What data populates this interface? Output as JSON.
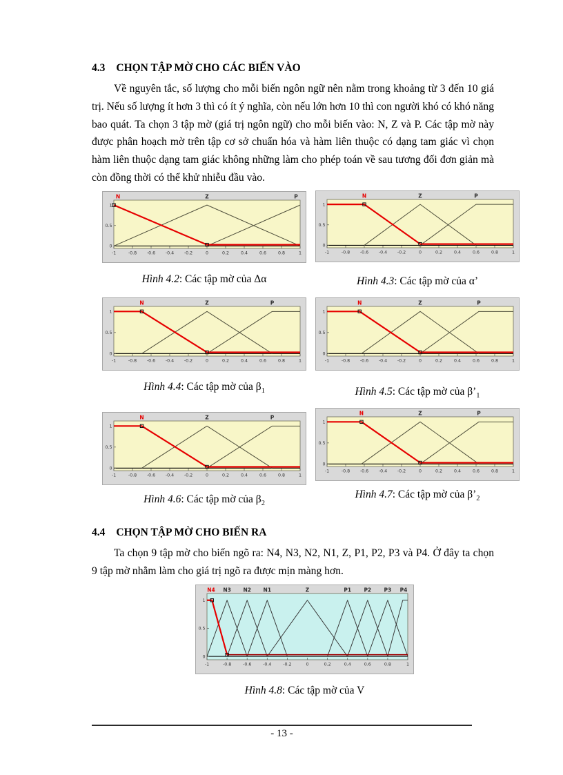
{
  "page": {
    "number_label": "- 13 -"
  },
  "section_43": {
    "number": "4.3",
    "title": "CHỌN TẬP MỜ CHO CÁC BIẾN VÀO",
    "body": "Về nguyên tắc, số lượng cho mỗi biến ngôn ngữ nên nằm trong khoảng từ 3 đến 10 giá trị. Nếu số lượng ít hơn 3 thì có ít ý nghĩa, còn nếu lớn hơn 10 thì con người khó có khó năng bao quát. Ta chọn 3 tập mờ (giá trị ngôn ngữ) cho mỗi biến vào: N, Z và P. Các tập mờ này được phân hoạch mờ trên tập cơ sở chuẩn hóa và hàm liên thuộc có dạng tam giác vì chọn hàm liên thuộc dạng tam giác không những làm cho phép toán về sau tương đối đơn giản mà còn đồng thời có thể khử nhiễu đầu vào."
  },
  "section_44": {
    "number": "4.4",
    "title": "CHỌN TẬP MỜ CHO BIẾN RA",
    "body": "Ta chọn 9 tập mờ cho biến ngõ ra: N4, N3, N2, N1, Z, P1, P2, P3 và P4. Ở đây ta chọn 9 tập mờ nhằm làm cho giá trị ngõ ra được mịn màng hơn."
  },
  "colors": {
    "input_plot_bg": "#f8f6c8",
    "output_plot_bg": "#c9f1ee",
    "frame_bg": "#d9d9d9",
    "red_set": "#e60000",
    "dark_set": "#4f4f3c",
    "zero_line_dark_red": "#a00000"
  },
  "figures": [
    {
      "caption_label": "Hình 4.2",
      "caption_text": ": Các tập mờ của Δα",
      "caption_sub": "",
      "chart_data": {
        "type": "line",
        "bg": "#f8f6c8",
        "xlim": [
          -1,
          1
        ],
        "ylim": [
          -0.06,
          1.12
        ],
        "xticks": [
          -1,
          -0.8,
          -0.6,
          -0.4,
          -0.2,
          0,
          0.2,
          0.4,
          0.6,
          0.8,
          1
        ],
        "yticks": [
          0,
          0.5,
          1
        ],
        "series": [
          {
            "name": "Z",
            "color": "#4f4f3c",
            "width": 1,
            "label_x": 0,
            "points": [
              [
                -1,
                0
              ],
              [
                0,
                1
              ],
              [
                1,
                0
              ]
            ]
          },
          {
            "name": "P",
            "color": "#4f4f3c",
            "width": 1,
            "label_x": 0.97,
            "points": [
              [
                0,
                0
              ],
              [
                1,
                1
              ]
            ]
          },
          {
            "name": "N",
            "color": "#e60000",
            "width": 2.2,
            "label_color": "#e60000",
            "label_x": -0.97,
            "points": [
              [
                -1,
                1
              ],
              [
                0,
                0.03
              ],
              [
                1,
                0.03
              ]
            ]
          }
        ],
        "markers": [
          [
            -1,
            1
          ],
          [
            0,
            0.03
          ]
        ]
      }
    },
    {
      "caption_label": "Hình 4.3",
      "caption_text": ": Các tập mờ của α’",
      "caption_sub": "",
      "chart_data": {
        "type": "line",
        "bg": "#f8f6c8",
        "xlim": [
          -1,
          1
        ],
        "ylim": [
          -0.06,
          1.12
        ],
        "xticks": [
          -1,
          -0.8,
          -0.6,
          -0.4,
          -0.2,
          0,
          0.2,
          0.4,
          0.6,
          0.8,
          1
        ],
        "yticks": [
          0,
          0.5,
          1
        ],
        "series": [
          {
            "name": "Z",
            "color": "#4f4f3c",
            "width": 1,
            "label_x": 0,
            "points": [
              [
                -0.6,
                0
              ],
              [
                0,
                1
              ],
              [
                0.6,
                0
              ]
            ]
          },
          {
            "name": "P",
            "color": "#4f4f3c",
            "width": 1,
            "label_x": 0.6,
            "points": [
              [
                0,
                0
              ],
              [
                0.6,
                1
              ],
              [
                1,
                1
              ]
            ]
          },
          {
            "name": "N",
            "color": "#e60000",
            "width": 2.2,
            "label_color": "#e60000",
            "label_x": -0.6,
            "points": [
              [
                -1,
                1
              ],
              [
                -0.6,
                1
              ],
              [
                0,
                0.03
              ],
              [
                1,
                0.03
              ]
            ]
          }
        ],
        "markers": [
          [
            -0.6,
            1
          ],
          [
            0,
            0.03
          ]
        ]
      }
    },
    {
      "caption_label": "Hình 4.4",
      "caption_text": ": Các tập mờ của β",
      "caption_sub": "1",
      "chart_data": {
        "type": "line",
        "bg": "#f8f6c8",
        "xlim": [
          -1,
          1
        ],
        "ylim": [
          -0.06,
          1.12
        ],
        "xticks": [
          -1,
          -0.8,
          -0.6,
          -0.4,
          -0.2,
          0,
          0.2,
          0.4,
          0.6,
          0.8,
          1
        ],
        "yticks": [
          0,
          0.5,
          1
        ],
        "series": [
          {
            "name": "Z",
            "color": "#4f4f3c",
            "width": 1,
            "label_x": 0,
            "points": [
              [
                -0.7,
                0
              ],
              [
                0,
                1
              ],
              [
                0.7,
                0
              ]
            ]
          },
          {
            "name": "P",
            "color": "#4f4f3c",
            "width": 1,
            "label_x": 0.7,
            "points": [
              [
                0,
                0
              ],
              [
                0.7,
                1
              ],
              [
                1,
                1
              ]
            ]
          },
          {
            "name": "N",
            "color": "#e60000",
            "width": 2.2,
            "label_color": "#e60000",
            "label_x": -0.7,
            "points": [
              [
                -1,
                1
              ],
              [
                -0.7,
                1
              ],
              [
                0,
                0.03
              ],
              [
                1,
                0.03
              ]
            ]
          }
        ],
        "markers": [
          [
            -0.7,
            1
          ],
          [
            0,
            0.03
          ]
        ]
      }
    },
    {
      "caption_label": "Hình 4.5",
      "caption_text": ": Các tập mờ của β’",
      "caption_sub": "1",
      "chart_data": {
        "type": "line",
        "bg": "#f8f6c8",
        "xlim": [
          -1,
          1
        ],
        "ylim": [
          -0.06,
          1.12
        ],
        "xticks": [
          -1,
          -0.8,
          -0.6,
          -0.4,
          -0.2,
          0,
          0.2,
          0.4,
          0.6,
          0.8,
          1
        ],
        "yticks": [
          0,
          0.5,
          1
        ],
        "series": [
          {
            "name": "Z",
            "color": "#4f4f3c",
            "width": 1,
            "label_x": 0,
            "points": [
              [
                -0.63,
                0
              ],
              [
                0,
                1
              ],
              [
                0.63,
                0
              ]
            ]
          },
          {
            "name": "P",
            "color": "#4f4f3c",
            "width": 1,
            "label_x": 0.63,
            "points": [
              [
                0,
                0
              ],
              [
                0.63,
                1
              ],
              [
                1,
                1
              ]
            ]
          },
          {
            "name": "N",
            "color": "#e60000",
            "width": 2.2,
            "label_color": "#e60000",
            "label_x": -0.65,
            "points": [
              [
                -1,
                1
              ],
              [
                -0.65,
                1
              ],
              [
                0,
                0.03
              ],
              [
                1,
                0.03
              ]
            ]
          }
        ],
        "markers": [
          [
            -0.65,
            1
          ],
          [
            0,
            0.03
          ]
        ]
      }
    },
    {
      "caption_label": "Hình 4.6",
      "caption_text": ": Các tập mờ của β",
      "caption_sub": "2",
      "chart_data": {
        "type": "line",
        "bg": "#f8f6c8",
        "xlim": [
          -1,
          1
        ],
        "ylim": [
          -0.06,
          1.12
        ],
        "xticks": [
          -1,
          -0.8,
          -0.6,
          -0.4,
          -0.2,
          0,
          0.2,
          0.4,
          0.6,
          0.8,
          1
        ],
        "yticks": [
          0,
          0.5,
          1
        ],
        "series": [
          {
            "name": "Z",
            "color": "#4f4f3c",
            "width": 1,
            "label_x": 0,
            "points": [
              [
                -0.7,
                0
              ],
              [
                0,
                1
              ],
              [
                0.7,
                0
              ]
            ]
          },
          {
            "name": "P",
            "color": "#4f4f3c",
            "width": 1,
            "label_x": 0.7,
            "points": [
              [
                0,
                0
              ],
              [
                0.7,
                1
              ],
              [
                1,
                1
              ]
            ]
          },
          {
            "name": "N",
            "color": "#e60000",
            "width": 2.2,
            "label_color": "#e60000",
            "label_x": -0.7,
            "points": [
              [
                -1,
                1
              ],
              [
                -0.7,
                1
              ],
              [
                0,
                0.03
              ],
              [
                1,
                0.03
              ]
            ]
          }
        ],
        "markers": [
          [
            -0.7,
            1
          ],
          [
            0,
            0.03
          ]
        ]
      }
    },
    {
      "caption_label": "Hình 4.7",
      "caption_text": ": Các tập mờ của β’",
      "caption_sub": "2",
      "chart_data": {
        "type": "line",
        "bg": "#f8f6c8",
        "xlim": [
          -1,
          1
        ],
        "ylim": [
          -0.06,
          1.12
        ],
        "xticks": [
          -1,
          -0.8,
          -0.6,
          -0.4,
          -0.2,
          0,
          0.2,
          0.4,
          0.6,
          0.8,
          1
        ],
        "yticks": [
          0,
          0.5,
          1
        ],
        "series": [
          {
            "name": "Z",
            "color": "#4f4f3c",
            "width": 1,
            "label_x": 0,
            "points": [
              [
                -0.63,
                0
              ],
              [
                0,
                1
              ],
              [
                0.63,
                0
              ]
            ]
          },
          {
            "name": "P",
            "color": "#4f4f3c",
            "width": 1,
            "label_x": 0.63,
            "points": [
              [
                0,
                0
              ],
              [
                0.63,
                1
              ],
              [
                1,
                1
              ]
            ]
          },
          {
            "name": "N",
            "color": "#e60000",
            "width": 2.2,
            "label_color": "#e60000",
            "label_x": -0.63,
            "points": [
              [
                -1,
                1
              ],
              [
                -0.63,
                1
              ],
              [
                0,
                0.03
              ],
              [
                1,
                0.03
              ]
            ]
          }
        ],
        "markers": [
          [
            -0.63,
            1
          ],
          [
            0,
            0.03
          ]
        ]
      }
    },
    {
      "caption_label": "Hình 4.8",
      "caption_text": ": Các tập mờ của V",
      "caption_sub": "",
      "chart_data": {
        "type": "line",
        "bg": "#c9f1ee",
        "xlim": [
          -1,
          1
        ],
        "ylim": [
          -0.06,
          1.12
        ],
        "xticks": [
          -1,
          -0.8,
          -0.6,
          -0.4,
          -0.2,
          0,
          0.2,
          0.4,
          0.6,
          0.8,
          1
        ],
        "yticks": [
          0,
          0.5,
          1
        ],
        "series": [
          {
            "name": "N3",
            "color": "#3a3a3a",
            "width": 1,
            "label_x": -0.8,
            "points": [
              [
                -1,
                0
              ],
              [
                -0.8,
                1
              ],
              [
                -0.6,
                0
              ]
            ]
          },
          {
            "name": "N2",
            "color": "#3a3a3a",
            "width": 1,
            "label_x": -0.6,
            "points": [
              [
                -0.8,
                0
              ],
              [
                -0.6,
                1
              ],
              [
                -0.4,
                0
              ]
            ]
          },
          {
            "name": "N1",
            "color": "#3a3a3a",
            "width": 1,
            "label_x": -0.4,
            "points": [
              [
                -0.6,
                0
              ],
              [
                -0.4,
                1
              ],
              [
                -0.2,
                0
              ]
            ]
          },
          {
            "name": "Z",
            "color": "#3a3a3a",
            "width": 1,
            "label_x": 0,
            "points": [
              [
                -0.4,
                0
              ],
              [
                0,
                1
              ],
              [
                0.4,
                0
              ]
            ]
          },
          {
            "name": "P1",
            "color": "#3a3a3a",
            "width": 1,
            "label_x": 0.4,
            "points": [
              [
                0.2,
                0
              ],
              [
                0.4,
                1
              ],
              [
                0.6,
                0
              ]
            ]
          },
          {
            "name": "P2",
            "color": "#3a3a3a",
            "width": 1,
            "label_x": 0.6,
            "points": [
              [
                0.4,
                0
              ],
              [
                0.6,
                1
              ],
              [
                0.8,
                0
              ]
            ]
          },
          {
            "name": "P3",
            "color": "#3a3a3a",
            "width": 1,
            "label_x": 0.8,
            "points": [
              [
                0.6,
                0
              ],
              [
                0.8,
                1
              ],
              [
                1,
                0
              ]
            ]
          },
          {
            "name": "P4",
            "color": "#3a3a3a",
            "width": 1,
            "label_x": 0.96,
            "points": [
              [
                0.8,
                0
              ],
              [
                0.95,
                1
              ],
              [
                1,
                1
              ]
            ]
          },
          {
            "name": "",
            "color": "#a00000",
            "width": 1.6,
            "label_x": 0,
            "points": [
              [
                -0.8,
                0.03
              ],
              [
                1,
                0.03
              ]
            ]
          },
          {
            "name": "N4",
            "color": "#e60000",
            "width": 2.2,
            "label_color": "#e60000",
            "label_x": -0.96,
            "points": [
              [
                -1,
                1
              ],
              [
                -0.95,
                1
              ],
              [
                -0.8,
                0.03
              ]
            ]
          }
        ],
        "markers": [
          [
            -0.95,
            1
          ],
          [
            -0.8,
            0.03
          ]
        ]
      }
    }
  ]
}
